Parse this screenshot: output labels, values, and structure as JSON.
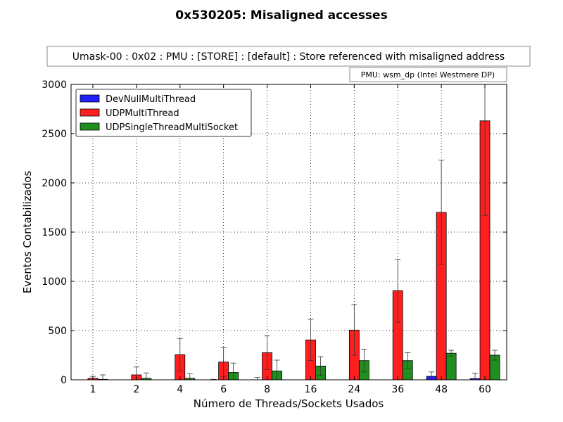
{
  "chart_data": {
    "type": "bar",
    "title": "0x530205: Misaligned accesses",
    "subtitle": "Umask-00 : 0x02 : PMU : [STORE] : [default] : Store referenced with misaligned address",
    "note": "PMU: wsm_dp (Intel Westmere DP)",
    "xlabel": "Número de Threads/Sockets Usados",
    "ylabel": "Eventos Contabilizados",
    "categories": [
      "1",
      "2",
      "4",
      "6",
      "8",
      "16",
      "24",
      "36",
      "48",
      "60"
    ],
    "ylim": [
      0,
      3000
    ],
    "yticks": [
      0,
      500,
      1000,
      1500,
      2000,
      2500,
      3000
    ],
    "grid": true,
    "legend_position": "top-left",
    "series": [
      {
        "name": "DevNullMultiThread",
        "color": "#1f1fff",
        "values": [
          0,
          0,
          0,
          0,
          0,
          0,
          0,
          0,
          35,
          12
        ],
        "errors": [
          0,
          0,
          0,
          5,
          25,
          0,
          0,
          0,
          45,
          55
        ]
      },
      {
        "name": "UDPMultiThread",
        "color": "#ff1f1f",
        "values": [
          15,
          50,
          255,
          180,
          275,
          405,
          505,
          905,
          1700,
          2630
        ],
        "errors": [
          20,
          80,
          165,
          145,
          170,
          210,
          255,
          320,
          530,
          960
        ]
      },
      {
        "name": "UDPSingleThreadMultiSocket",
        "color": "#1f8f1f",
        "values": [
          5,
          15,
          15,
          75,
          90,
          140,
          195,
          195,
          270,
          250
        ],
        "errors": [
          45,
          55,
          45,
          95,
          110,
          95,
          115,
          80,
          30,
          50
        ]
      }
    ]
  }
}
